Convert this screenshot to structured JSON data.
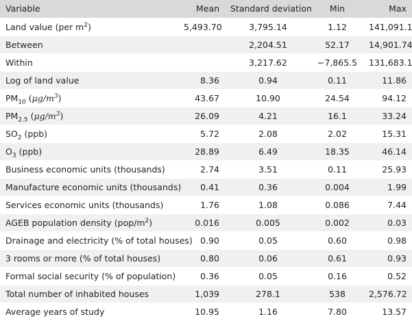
{
  "table": {
    "header": [
      "Variable",
      "Mean",
      "Standard deviation",
      "Min",
      "Max"
    ],
    "rows": [
      [
        [
          {
            "text": "Land value (per m",
            "style": "normal"
          },
          {
            "text": "2",
            "style": "sup"
          },
          {
            "text": ")",
            "style": "normal"
          }
        ],
        "5,493.70",
        "3,795.14",
        "1.12",
        "141,091.1"
      ],
      [
        [
          {
            "text": "Between",
            "style": "normal"
          }
        ],
        null,
        "2,204.51",
        "52.17",
        "14,901.74"
      ],
      [
        [
          {
            "text": "Within",
            "style": "normal"
          }
        ],
        null,
        "3,217.62",
        "−7,865.5",
        "131,683.1"
      ],
      [
        [
          {
            "text": "Log of land value",
            "style": "normal"
          }
        ],
        "8.36",
        "0.94",
        "0.11",
        "11.86"
      ],
      [
        [
          {
            "text": "PM",
            "style": "normal"
          },
          {
            "text": "10",
            "style": "sub"
          },
          {
            "text": " (",
            "style": "normal"
          },
          {
            "text": "μg/m",
            "style": "italic"
          },
          {
            "text": "3",
            "style": "italic-sup"
          },
          {
            "text": ")",
            "style": "normal"
          }
        ],
        "43.67",
        "10.90",
        "24.54",
        "94.12"
      ],
      [
        [
          {
            "text": "PM",
            "style": "normal"
          },
          {
            "text": "2.5",
            "style": "sub"
          },
          {
            "text": " (",
            "style": "normal"
          },
          {
            "text": "μg/m",
            "style": "italic"
          },
          {
            "text": "3",
            "style": "italic-sup"
          },
          {
            "text": ")",
            "style": "normal"
          }
        ],
        "26.09",
        "4.21",
        "16.1",
        "33.24"
      ],
      [
        [
          {
            "text": "SO",
            "style": "normal"
          },
          {
            "text": "2",
            "style": "sub"
          },
          {
            "text": " (ppb)",
            "style": "normal"
          }
        ],
        "5.72",
        "2.08",
        "2.02",
        "15.31"
      ],
      [
        [
          {
            "text": "O",
            "style": "normal"
          },
          {
            "text": "3",
            "style": "sub"
          },
          {
            "text": " (ppb)",
            "style": "normal"
          }
        ],
        "28.89",
        "6.49",
        "18.35",
        "46.14"
      ],
      [
        [
          {
            "text": "Business economic units (thousands)",
            "style": "normal"
          }
        ],
        "2.74",
        "3.51",
        "0.11",
        "25.93"
      ],
      [
        [
          {
            "text": "Manufacture economic units (thousands)",
            "style": "normal"
          }
        ],
        "0.41",
        "0.36",
        "0.004",
        "1.99"
      ],
      [
        [
          {
            "text": "Services economic units (thousands)",
            "style": "normal"
          }
        ],
        "1.76",
        "1.08",
        "0.086",
        "7.44"
      ],
      [
        [
          {
            "text": "AGEB population density (pop/m",
            "style": "normal"
          },
          {
            "text": "2",
            "style": "sup"
          },
          {
            "text": ")",
            "style": "normal"
          }
        ],
        "0.016",
        "0.005",
        "0.002",
        "0.03"
      ],
      [
        [
          {
            "text": "Drainage and electricity (% of total houses)",
            "style": "normal"
          }
        ],
        "0.90",
        "0.05",
        "0.60",
        "0.98"
      ],
      [
        [
          {
            "text": "3 rooms or more (% of total houses)",
            "style": "normal"
          }
        ],
        "0.80",
        "0.06",
        "0.61",
        "0.93"
      ],
      [
        [
          {
            "text": "Formal social security (% of population)",
            "style": "normal"
          }
        ],
        "0.36",
        "0.05",
        "0.16",
        "0.52"
      ],
      [
        [
          {
            "text": "Total number of inhabited houses",
            "style": "normal"
          }
        ],
        "1,039",
        "278.1",
        "538",
        "2,576.72"
      ],
      [
        [
          {
            "text": "Average years of study",
            "style": "normal"
          }
        ],
        "10.95",
        "1.16",
        "7.80",
        "13.57"
      ]
    ]
  }
}
